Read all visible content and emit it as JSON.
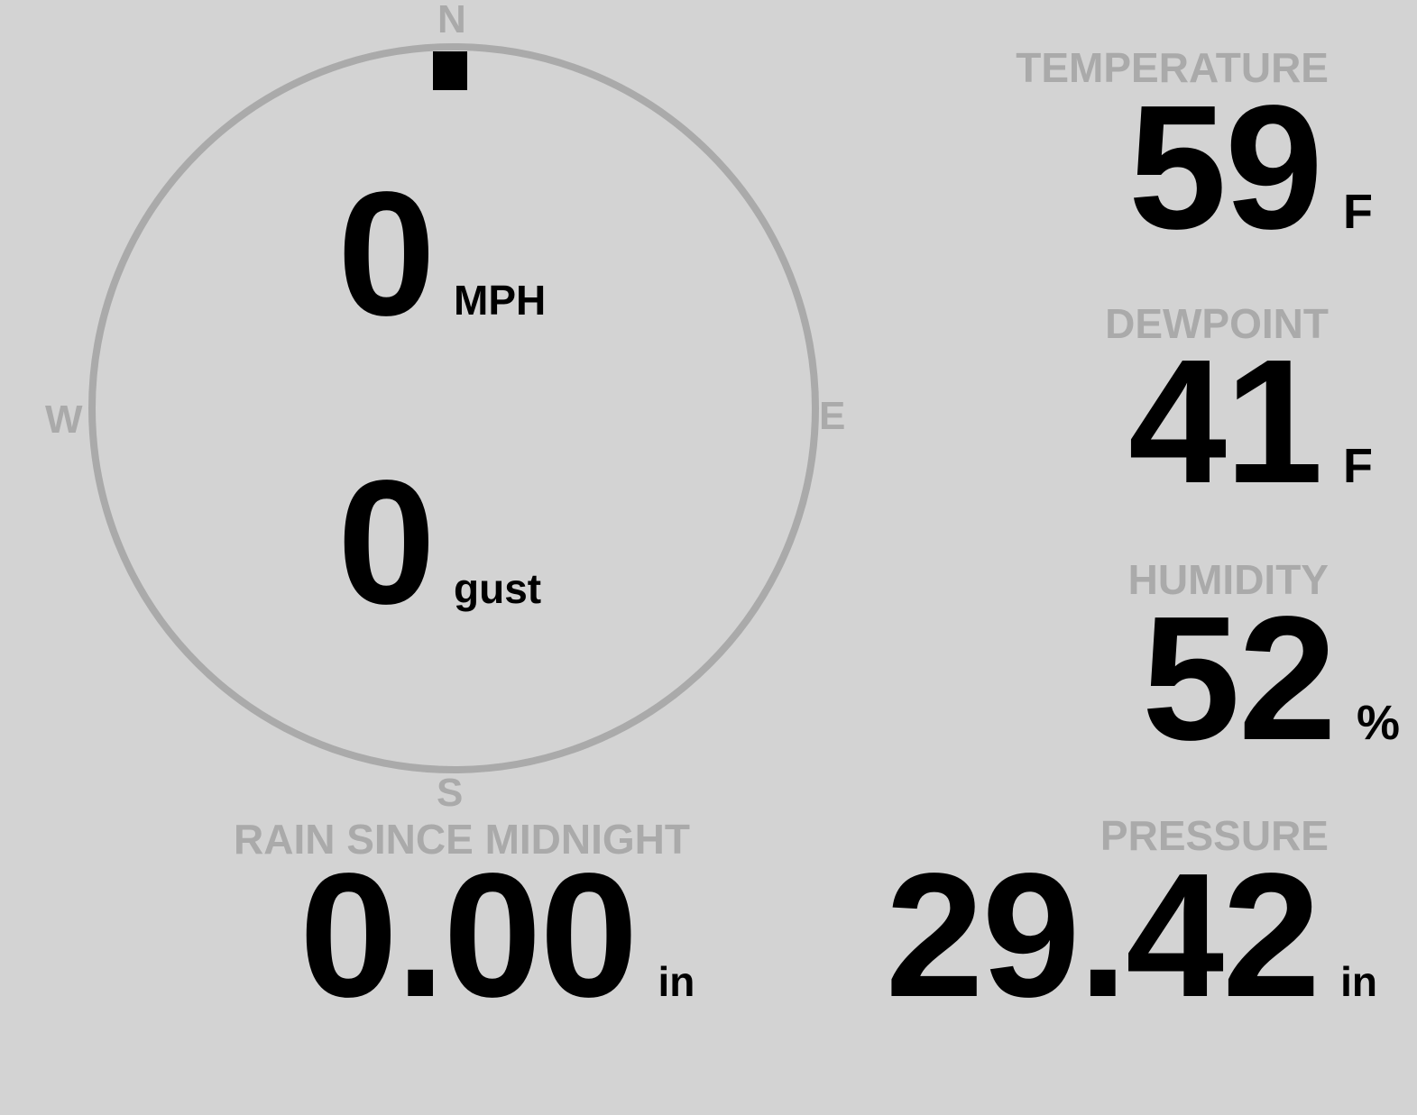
{
  "wind": {
    "compass": {
      "north": "N",
      "east": "E",
      "south": "S",
      "west": "W"
    },
    "direction_degrees": 0,
    "speed": {
      "value": "0",
      "unit": "MPH"
    },
    "gust": {
      "value": "0",
      "unit": "gust"
    }
  },
  "temperature": {
    "label": "TEMPERATURE",
    "value": "59",
    "unit": "F"
  },
  "dewpoint": {
    "label": "DEWPOINT",
    "value": "41",
    "unit": "F"
  },
  "humidity": {
    "label": "HUMIDITY",
    "value": "52",
    "unit": "%"
  },
  "pressure": {
    "label": "PRESSURE",
    "value": "29.42",
    "unit": "in"
  },
  "rain": {
    "label": "RAIN SINCE MIDNIGHT",
    "value": "0.00",
    "unit": "in"
  },
  "colors": {
    "background": "#d3d3d3",
    "label": "#aaaaaa",
    "value": "#000000"
  }
}
